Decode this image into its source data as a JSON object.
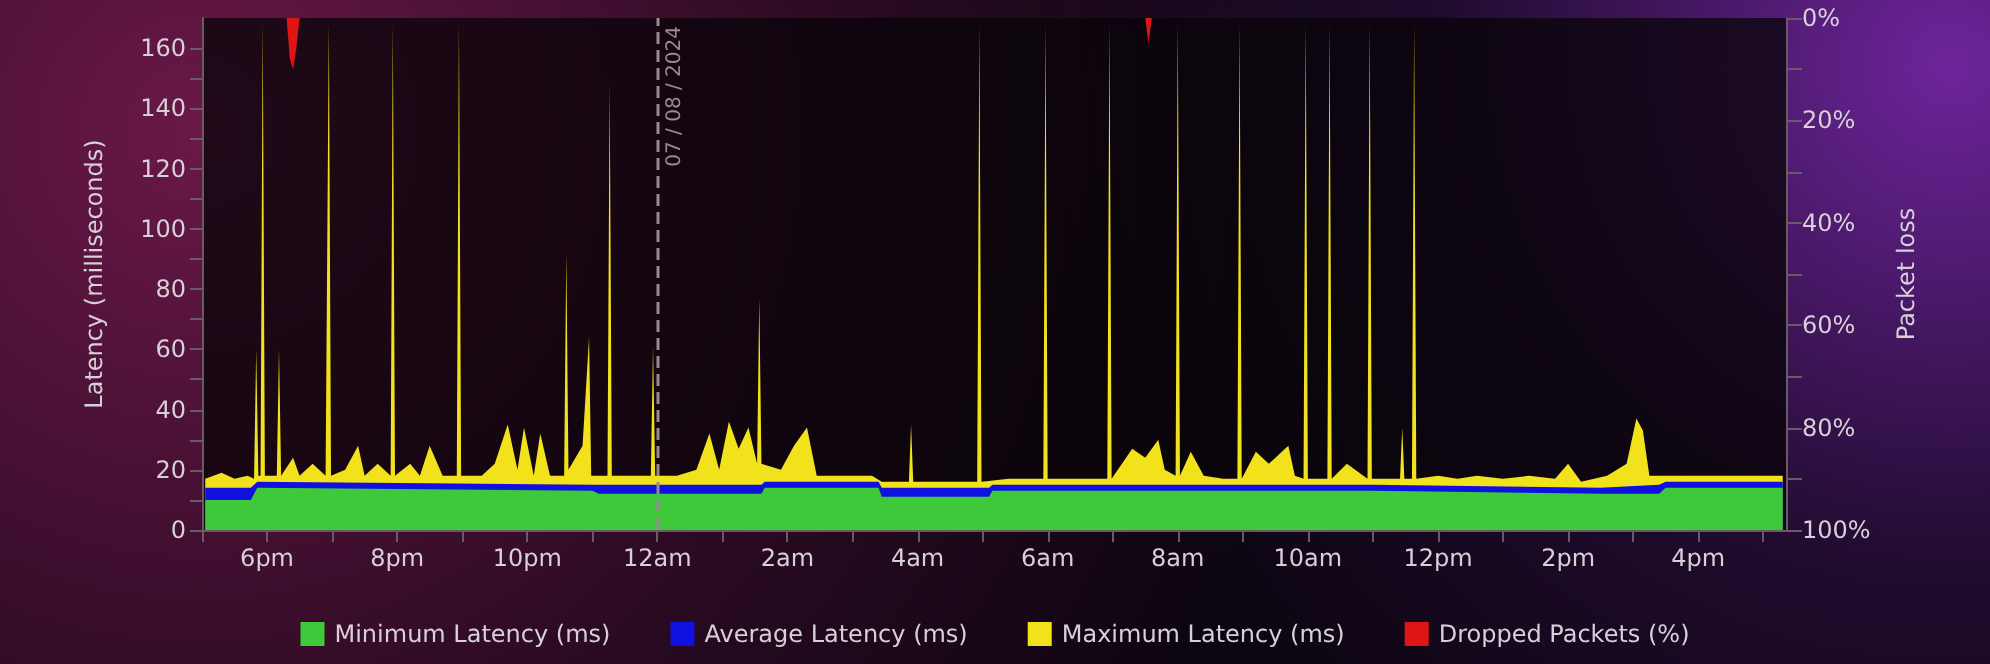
{
  "chart_data": {
    "type": "area",
    "ylabel": "Latency (milliseconds)",
    "y2label": "Packet loss",
    "xlim": [
      "2024-07-07T17:00",
      "2024-07-08T17:21"
    ],
    "xticks": [
      {
        "value": "2024-07-07T17:00",
        "label": null
      },
      {
        "value": "2024-07-07T18:00",
        "label": "6pm"
      },
      {
        "value": "2024-07-07T19:00",
        "label": null
      },
      {
        "value": "2024-07-07T20:00",
        "label": "8pm"
      },
      {
        "value": "2024-07-07T21:00",
        "label": null
      },
      {
        "value": "2024-07-07T22:00",
        "label": "10pm"
      },
      {
        "value": "2024-07-07T23:00",
        "label": null
      },
      {
        "value": "2024-07-08T00:00",
        "label": "12am"
      },
      {
        "value": "2024-07-08T01:00",
        "label": null
      },
      {
        "value": "2024-07-08T02:00",
        "label": "2am"
      },
      {
        "value": "2024-07-08T03:00",
        "label": null
      },
      {
        "value": "2024-07-08T04:00",
        "label": "4am"
      },
      {
        "value": "2024-07-08T05:00",
        "label": null
      },
      {
        "value": "2024-07-08T06:00",
        "label": "6am"
      },
      {
        "value": "2024-07-08T07:00",
        "label": null
      },
      {
        "value": "2024-07-08T08:00",
        "label": "8am"
      },
      {
        "value": "2024-07-08T09:00",
        "label": null
      },
      {
        "value": "2024-07-08T10:00",
        "label": "10am"
      },
      {
        "value": "2024-07-08T11:00",
        "label": null
      },
      {
        "value": "2024-07-08T12:00",
        "label": "12pm"
      },
      {
        "value": "2024-07-08T13:00",
        "label": null
      },
      {
        "value": "2024-07-08T14:00",
        "label": "2pm"
      },
      {
        "value": "2024-07-08T15:00",
        "label": null
      },
      {
        "value": "2024-07-08T16:00",
        "label": "4pm"
      },
      {
        "value": "2024-07-08T17:00",
        "label": null
      }
    ],
    "ylim": [
      0,
      170
    ],
    "yticks": [
      0,
      {
        "value": 10,
        "label": null
      },
      20,
      {
        "value": 30,
        "label": null
      },
      40,
      {
        "value": 50,
        "label": null
      },
      60,
      {
        "value": 70,
        "label": null
      },
      80,
      {
        "value": 90,
        "label": null
      },
      100,
      {
        "value": 110,
        "label": null
      },
      120,
      {
        "value": 130,
        "label": null
      },
      140,
      {
        "value": 150,
        "label": null
      },
      160
    ],
    "y2lim": [
      100,
      0
    ],
    "y2ticks": [
      {
        "value": 0,
        "label": "0%"
      },
      {
        "value": 10,
        "label": null
      },
      {
        "value": 20,
        "label": "20%"
      },
      {
        "value": 30,
        "label": null
      },
      {
        "value": 40,
        "label": "40%"
      },
      {
        "value": 50,
        "label": null
      },
      {
        "value": 60,
        "label": "60%"
      },
      {
        "value": 70,
        "label": null
      },
      {
        "value": 80,
        "label": "80%"
      },
      {
        "value": 90,
        "label": null
      },
      {
        "value": 100,
        "label": "100%"
      }
    ],
    "legend": "bottom",
    "marker": "none",
    "ref_lines": [
      {
        "axis": "x",
        "value": "2024-07-08T00:00",
        "label": "07 / 08 / 2024",
        "color": "#9a8a90",
        "line_style": "dashed"
      }
    ],
    "series": [
      {
        "name": "Maximum Latency (ms)",
        "color": "#f2e21c",
        "x": [
          "2024-07-07T17:03",
          "2024-07-07T17:18",
          "2024-07-07T17:30",
          "2024-07-07T17:42",
          "2024-07-07T17:48",
          "2024-07-07T17:50",
          "2024-07-07T17:52",
          "2024-07-07T17:54",
          "2024-07-07T17:56",
          "2024-07-07T17:58",
          "2024-07-07T18:06",
          "2024-07-07T18:09",
          "2024-07-07T18:11",
          "2024-07-07T18:13",
          "2024-07-07T18:24",
          "2024-07-07T18:30",
          "2024-07-07T18:42",
          "2024-07-07T18:54",
          "2024-07-07T18:55",
          "2024-07-07T18:57",
          "2024-07-07T18:59",
          "2024-07-07T19:12",
          "2024-07-07T19:24",
          "2024-07-07T19:30",
          "2024-07-07T19:42",
          "2024-07-07T19:54",
          "2024-07-07T19:56",
          "2024-07-07T19:58",
          "2024-07-07T20:12",
          "2024-07-07T20:21",
          "2024-07-07T20:30",
          "2024-07-07T20:42",
          "2024-07-07T20:55",
          "2024-07-07T20:57",
          "2024-07-07T20:59",
          "2024-07-07T21:18",
          "2024-07-07T21:30",
          "2024-07-07T21:42",
          "2024-07-07T21:51",
          "2024-07-07T21:57",
          "2024-07-07T22:06",
          "2024-07-07T22:12",
          "2024-07-07T22:21",
          "2024-07-07T22:34",
          "2024-07-07T22:36",
          "2024-07-07T22:38",
          "2024-07-07T22:51",
          "2024-07-07T22:57",
          "2024-07-07T22:59",
          "2024-07-07T23:14",
          "2024-07-07T23:16",
          "2024-07-07T23:18",
          "2024-07-07T23:36",
          "2024-07-07T23:54",
          "2024-07-07T23:56",
          "2024-07-07T23:58",
          "2024-07-08T00:18",
          "2024-07-08T00:36",
          "2024-07-08T00:48",
          "2024-07-08T00:57",
          "2024-07-08T01:06",
          "2024-07-08T01:15",
          "2024-07-08T01:24",
          "2024-07-08T01:32",
          "2024-07-08T01:34",
          "2024-07-08T01:36",
          "2024-07-08T01:54",
          "2024-07-08T02:06",
          "2024-07-08T02:18",
          "2024-07-08T02:27",
          "2024-07-08T02:48",
          "2024-07-08T03:00",
          "2024-07-08T03:18",
          "2024-07-08T03:27",
          "2024-07-08T03:42",
          "2024-07-08T03:52",
          "2024-07-08T03:54",
          "2024-07-08T03:56",
          "2024-07-08T04:18",
          "2024-07-08T04:36",
          "2024-07-08T04:55",
          "2024-07-08T04:57",
          "2024-07-08T04:59",
          "2024-07-08T05:24",
          "2024-07-08T05:56",
          "2024-07-08T05:58",
          "2024-07-08T06:00",
          "2024-07-08T06:30",
          "2024-07-08T06:55",
          "2024-07-08T06:57",
          "2024-07-08T06:59",
          "2024-07-08T07:18",
          "2024-07-08T07:30",
          "2024-07-08T07:42",
          "2024-07-08T07:48",
          "2024-07-08T07:58",
          "2024-07-08T08:00",
          "2024-07-08T08:02",
          "2024-07-08T08:12",
          "2024-07-08T08:24",
          "2024-07-08T08:42",
          "2024-07-08T08:55",
          "2024-07-08T08:57",
          "2024-07-08T08:59",
          "2024-07-08T09:12",
          "2024-07-08T09:24",
          "2024-07-08T09:42",
          "2024-07-08T09:48",
          "2024-07-08T09:56",
          "2024-07-08T09:58",
          "2024-07-08T10:00",
          "2024-07-08T10:18",
          "2024-07-08T10:20",
          "2024-07-08T10:22",
          "2024-07-08T10:36",
          "2024-07-08T10:55",
          "2024-07-08T10:57",
          "2024-07-08T10:59",
          "2024-07-08T11:12",
          "2024-07-08T11:25",
          "2024-07-08T11:27",
          "2024-07-08T11:29",
          "2024-07-08T11:36",
          "2024-07-08T11:38",
          "2024-07-08T11:40",
          "2024-07-08T12:00",
          "2024-07-08T12:18",
          "2024-07-08T12:36",
          "2024-07-08T13:00",
          "2024-07-08T13:24",
          "2024-07-08T13:48",
          "2024-07-08T14:00",
          "2024-07-08T14:12",
          "2024-07-08T14:36",
          "2024-07-08T14:54",
          "2024-07-08T15:03",
          "2024-07-08T15:09",
          "2024-07-08T15:15",
          "2024-07-08T15:30",
          "2024-07-08T16:00",
          "2024-07-08T16:30",
          "2024-07-08T17:00",
          "2024-07-08T17:18"
        ],
        "values": [
          17,
          19,
          17,
          18,
          17,
          60,
          18,
          18,
          168,
          18,
          18,
          18,
          60,
          18,
          24,
          18,
          22,
          18,
          18,
          168,
          18,
          20,
          28,
          18,
          22,
          18,
          168,
          18,
          22,
          18,
          28,
          18,
          18,
          168,
          18,
          18,
          22,
          35,
          20,
          34,
          18,
          32,
          18,
          18,
          92,
          20,
          28,
          64,
          18,
          18,
          148,
          18,
          18,
          18,
          61,
          18,
          18,
          20,
          32,
          20,
          36,
          27,
          34,
          22,
          77,
          22,
          20,
          28,
          34,
          18,
          18,
          18,
          18,
          16,
          16,
          16,
          35,
          16,
          16,
          16,
          16,
          168,
          16,
          17,
          17,
          168,
          17,
          17,
          17,
          168,
          17,
          27,
          24,
          30,
          20,
          18,
          168,
          18,
          26,
          18,
          17,
          17,
          168,
          17,
          26,
          22,
          28,
          18,
          17,
          168,
          17,
          17,
          168,
          17,
          22,
          17,
          168,
          17,
          17,
          17,
          34,
          17,
          17,
          168,
          17,
          18,
          17,
          18,
          17,
          18,
          17,
          22,
          16,
          18,
          22,
          37,
          33,
          18,
          18,
          18,
          18,
          18,
          18
        ]
      },
      {
        "name": "Average Latency (ms)",
        "color": "#1010e0",
        "x": [
          "2024-07-07T17:03",
          "2024-07-07T17:45",
          "2024-07-07T17:51",
          "2024-07-07T23:00",
          "2024-07-07T23:06",
          "2024-07-08T01:36",
          "2024-07-08T01:39",
          "2024-07-08T03:24",
          "2024-07-08T03:27",
          "2024-07-08T05:06",
          "2024-07-08T05:09",
          "2024-07-08T11:00",
          "2024-07-08T14:30",
          "2024-07-08T15:24",
          "2024-07-08T15:30",
          "2024-07-08T17:18"
        ],
        "values": [
          14,
          14,
          16,
          15,
          15,
          15,
          16,
          16,
          14,
          14,
          15,
          15,
          14,
          15,
          16,
          16
        ]
      },
      {
        "name": "Minimum Latency (ms)",
        "color": "#3ec93a",
        "x": [
          "2024-07-07T17:03",
          "2024-07-07T17:45",
          "2024-07-07T17:51",
          "2024-07-07T23:00",
          "2024-07-07T23:06",
          "2024-07-08T01:36",
          "2024-07-08T01:39",
          "2024-07-08T03:24",
          "2024-07-08T03:27",
          "2024-07-08T05:06",
          "2024-07-08T05:09",
          "2024-07-08T11:00",
          "2024-07-08T14:30",
          "2024-07-08T15:24",
          "2024-07-08T15:30",
          "2024-07-08T17:18"
        ],
        "values": [
          10,
          10,
          14,
          13,
          12,
          12,
          14,
          14,
          11,
          11,
          13,
          13,
          12,
          12,
          14,
          14
        ]
      },
      {
        "name": "Dropped Packets (%)",
        "color": "#dd1515",
        "axis": "y2",
        "x": [
          "2024-07-07T17:03",
          "2024-07-07T18:18",
          "2024-07-07T18:21",
          "2024-07-07T18:24",
          "2024-07-07T18:27",
          "2024-07-07T18:30",
          "2024-07-08T07:30",
          "2024-07-08T07:33",
          "2024-07-08T07:36",
          "2024-07-08T17:18"
        ],
        "values": [
          0,
          0,
          8,
          10,
          6,
          0,
          0,
          5,
          0,
          0
        ]
      }
    ]
  }
}
